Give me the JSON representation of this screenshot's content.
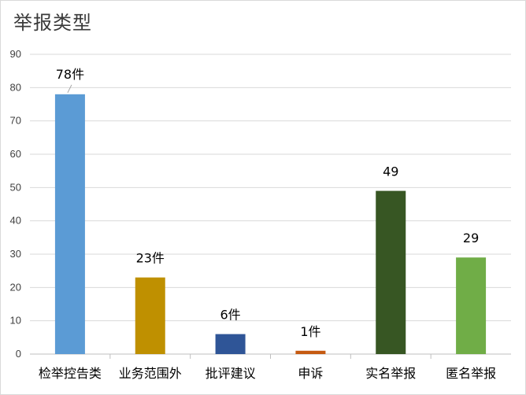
{
  "chart_data": {
    "type": "bar",
    "title": "举报类型",
    "xlabel": "",
    "ylabel": "",
    "ylim": [
      0,
      90
    ],
    "yticks": [
      0,
      10,
      20,
      30,
      40,
      50,
      60,
      70,
      80,
      90
    ],
    "grid": true,
    "categories": [
      "检举控告类",
      "业务范围外",
      "批评建议",
      "申诉",
      "实名举报",
      "匿名举报"
    ],
    "values": [
      78,
      23,
      6,
      1,
      49,
      29
    ],
    "data_labels": [
      "78件",
      "23件",
      "6件",
      "1件",
      "49",
      "29"
    ],
    "colors": [
      "#5b9bd5",
      "#bf9000",
      "#2f5597",
      "#c55a11",
      "#375623",
      "#70ad47"
    ]
  }
}
